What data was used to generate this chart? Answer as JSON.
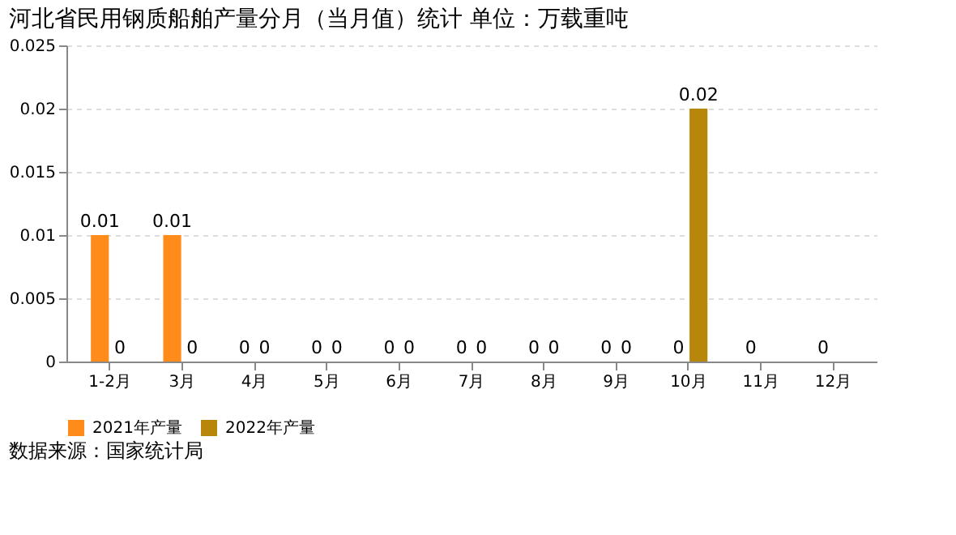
{
  "chart_data": {
    "type": "bar",
    "title": "河北省民用钢质船舶产量分月（当月值）统计 单位：万载重吨",
    "categories": [
      "1-2月",
      "3月",
      "4月",
      "5月",
      "6月",
      "7月",
      "8月",
      "9月",
      "10月",
      "11月",
      "12月"
    ],
    "series": [
      {
        "name": "2021年产量",
        "color": "#ff8c1a",
        "values": [
          0.01,
          0.01,
          0,
          0,
          0,
          0,
          0,
          0,
          0,
          0,
          0
        ]
      },
      {
        "name": "2022年产量",
        "color": "#b8860b",
        "values": [
          0,
          0,
          0,
          0,
          0,
          0,
          0,
          0,
          0.02,
          null,
          null
        ]
      }
    ],
    "ylim": [
      0,
      0.025
    ],
    "yticks": [
      0,
      0.005,
      0.01,
      0.015,
      0.02,
      0.025
    ],
    "grid": "y",
    "legend": "bottom",
    "data_labels": true,
    "annotations": [
      "数据来源：国家统计局"
    ]
  }
}
